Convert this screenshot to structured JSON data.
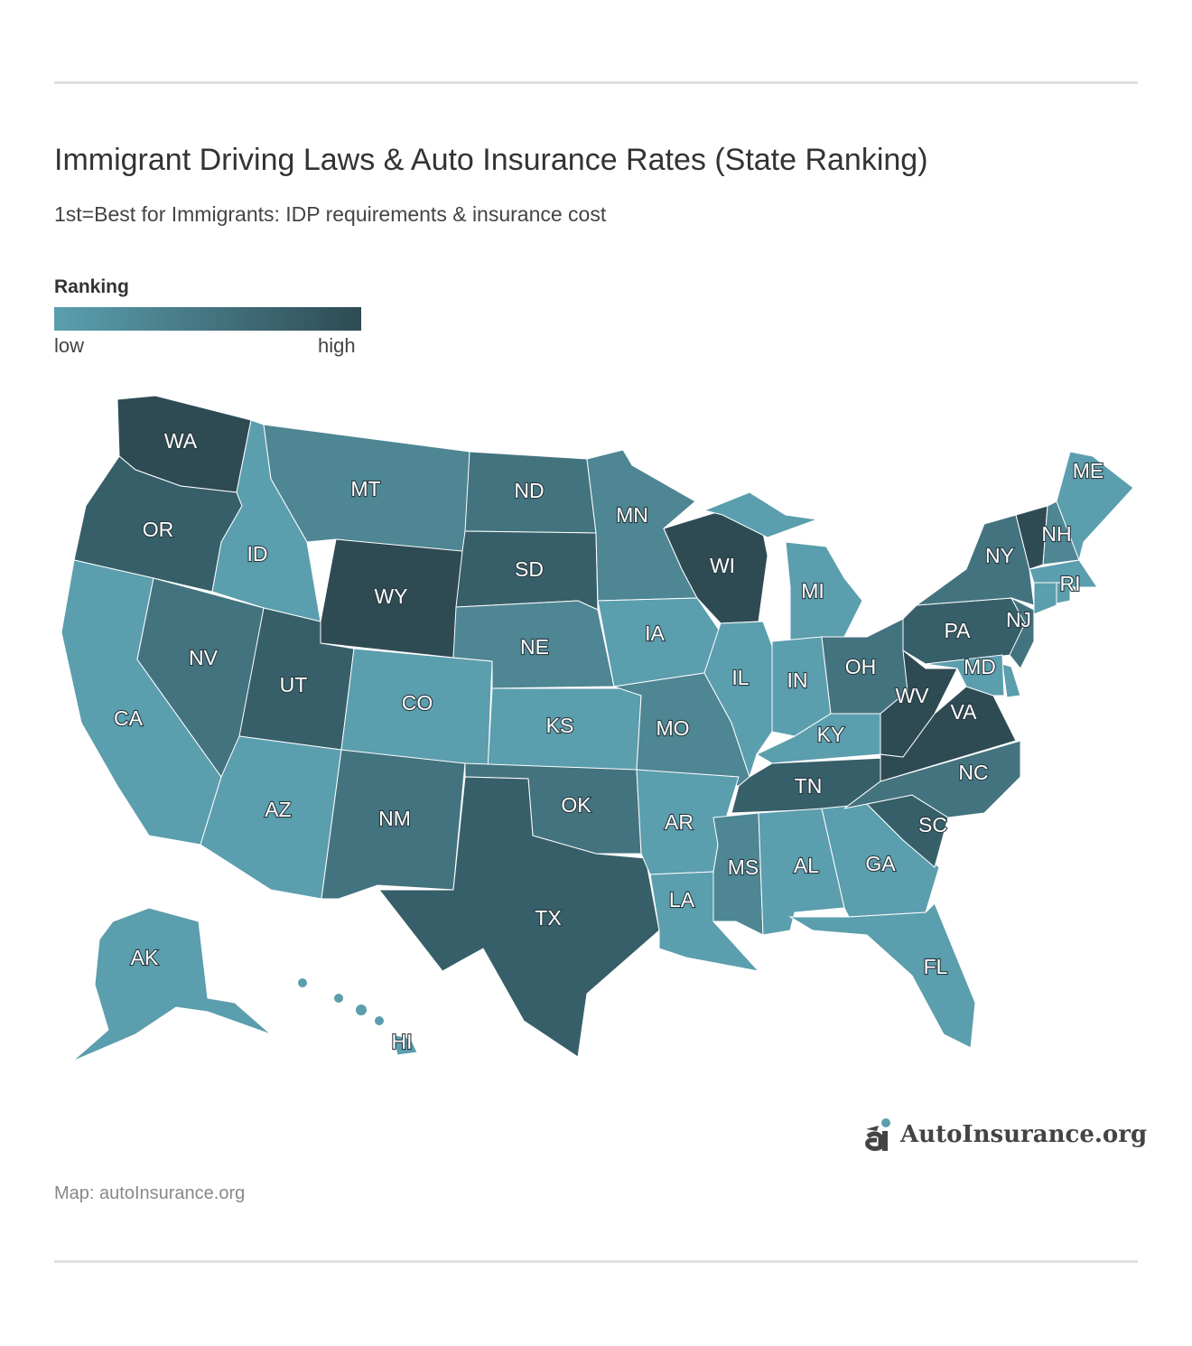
{
  "title": "Immigrant Driving Laws & Auto Insurance Rates (State Ranking)",
  "subtitle": "1st=Best for Immigrants: IDP requirements & insurance cost",
  "legend": {
    "title": "Ranking",
    "low": "low",
    "high": "high",
    "colors": [
      "#5b9eae",
      "#4e8693",
      "#43737f",
      "#375f69",
      "#2e4b54"
    ]
  },
  "states": [
    {
      "id": "WA",
      "level": 4
    },
    {
      "id": "OR",
      "level": 3
    },
    {
      "id": "CA",
      "level": 0
    },
    {
      "id": "ID",
      "level": 0
    },
    {
      "id": "NV",
      "level": 2
    },
    {
      "id": "MT",
      "level": 1
    },
    {
      "id": "WY",
      "level": 4
    },
    {
      "id": "UT",
      "level": 3
    },
    {
      "id": "AZ",
      "level": 0
    },
    {
      "id": "CO",
      "level": 0
    },
    {
      "id": "NM",
      "level": 2
    },
    {
      "id": "ND",
      "level": 2
    },
    {
      "id": "SD",
      "level": 3
    },
    {
      "id": "NE",
      "level": 1
    },
    {
      "id": "KS",
      "level": 0
    },
    {
      "id": "OK",
      "level": 2
    },
    {
      "id": "TX",
      "level": 3
    },
    {
      "id": "MN",
      "level": 1
    },
    {
      "id": "IA",
      "level": 0
    },
    {
      "id": "MO",
      "level": 1
    },
    {
      "id": "AR",
      "level": 0
    },
    {
      "id": "LA",
      "level": 0
    },
    {
      "id": "WI",
      "level": 4
    },
    {
      "id": "IL",
      "level": 0
    },
    {
      "id": "MI",
      "level": 0
    },
    {
      "id": "IN",
      "level": 0
    },
    {
      "id": "OH",
      "level": 2
    },
    {
      "id": "KY",
      "level": 0
    },
    {
      "id": "TN",
      "level": 3
    },
    {
      "id": "MS",
      "level": 1
    },
    {
      "id": "AL",
      "level": 0
    },
    {
      "id": "GA",
      "level": 0
    },
    {
      "id": "FL",
      "level": 0
    },
    {
      "id": "SC",
      "level": 3
    },
    {
      "id": "NC",
      "level": 2
    },
    {
      "id": "VA",
      "level": 4
    },
    {
      "id": "WV",
      "level": 4
    },
    {
      "id": "PA",
      "level": 3
    },
    {
      "id": "NY",
      "level": 2
    },
    {
      "id": "VT",
      "level": 4
    },
    {
      "id": "NH",
      "level": 1
    },
    {
      "id": "ME",
      "level": 0
    },
    {
      "id": "MA",
      "level": 0
    },
    {
      "id": "RI",
      "level": 0
    },
    {
      "id": "CT",
      "level": 0
    },
    {
      "id": "NJ",
      "level": 2
    },
    {
      "id": "DE",
      "level": 0
    },
    {
      "id": "MD",
      "level": 0
    },
    {
      "id": "AK",
      "level": 0
    },
    {
      "id": "HI",
      "level": 0
    }
  ],
  "logo": "AutoInsurance.org",
  "source": "Map: autoInsurance.org"
}
